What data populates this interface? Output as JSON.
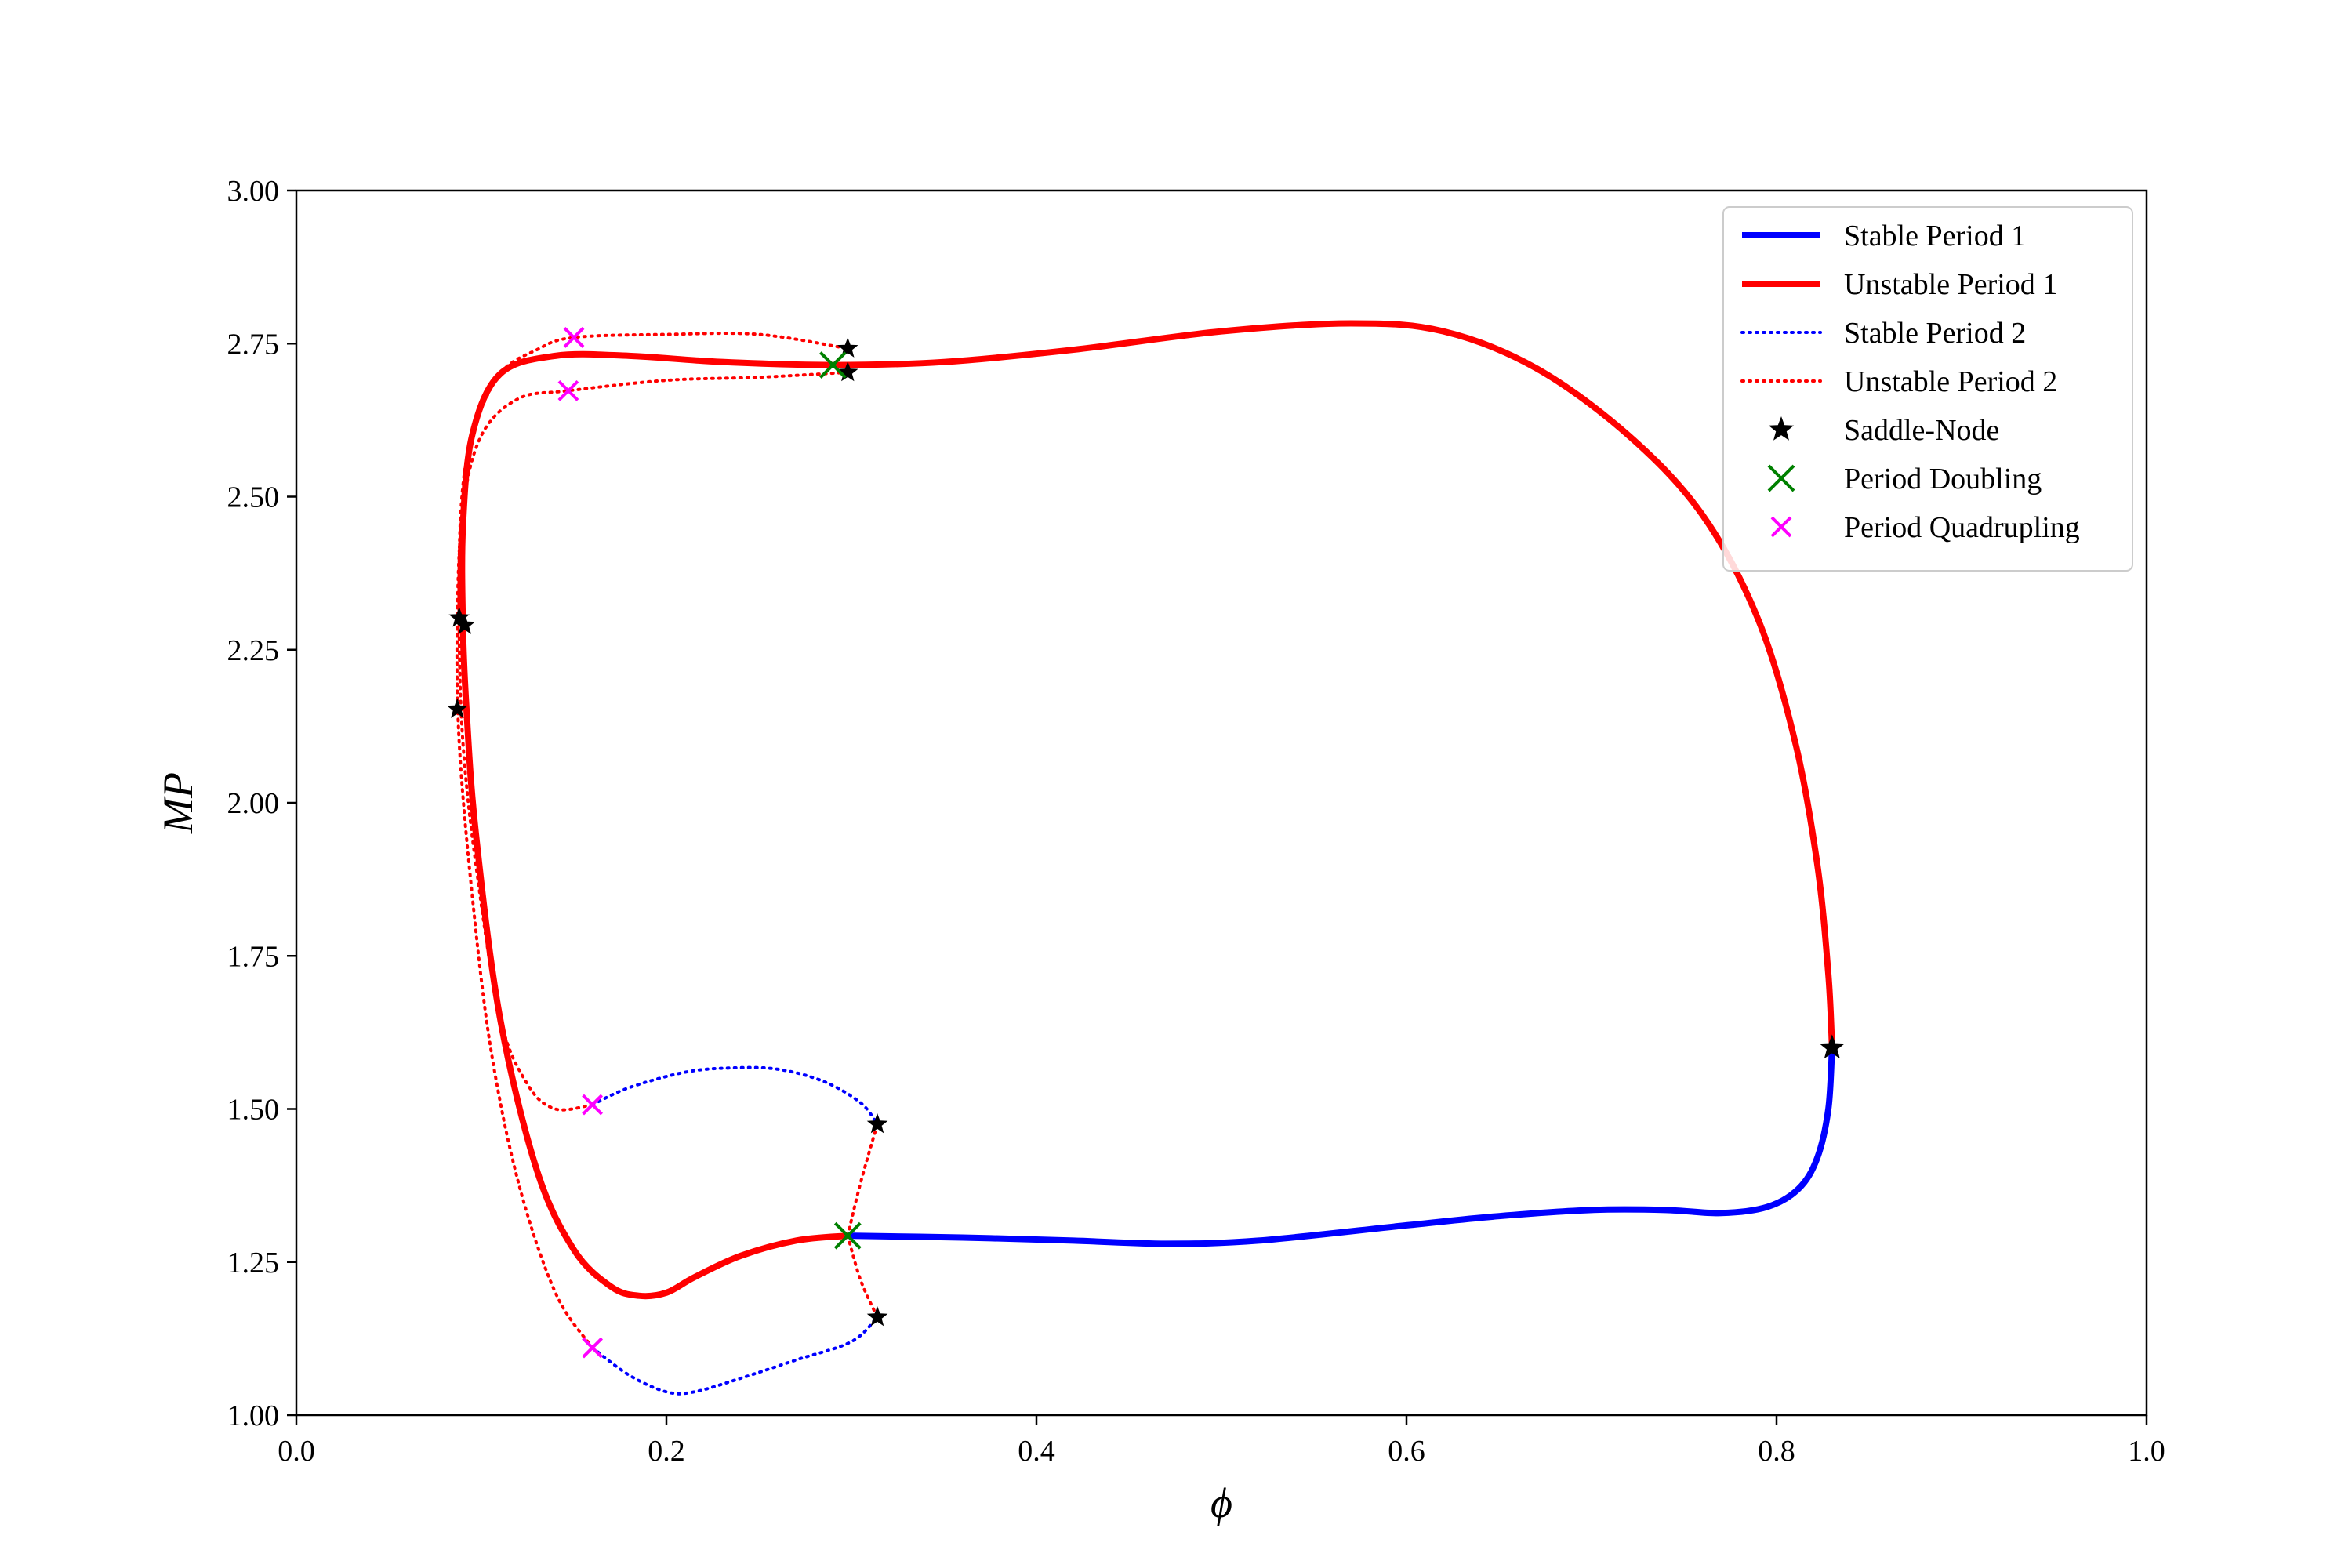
{
  "chart_data": {
    "type": "line",
    "title": "",
    "xlabel": "ϕ",
    "ylabel": "MP",
    "xlim": [
      0.0,
      1.0
    ],
    "ylim": [
      1.0,
      3.0
    ],
    "xticks": [
      "0.0",
      "0.2",
      "0.4",
      "0.6",
      "0.8",
      "1.0"
    ],
    "yticks": [
      "1.00",
      "1.25",
      "1.50",
      "1.75",
      "2.00",
      "2.25",
      "2.50",
      "2.75",
      "3.00"
    ],
    "grid": false,
    "legend_position": "top-right",
    "series": [
      {
        "name": "Stable Period 1",
        "style": "solid",
        "color": "#0000ff",
        "segments": [
          [
            [
              0.298,
              1.293
            ],
            [
              0.36,
              1.29
            ],
            [
              0.42,
              1.285
            ],
            [
              0.47,
              1.28
            ],
            [
              0.52,
              1.285
            ],
            [
              0.6,
              1.31
            ],
            [
              0.65,
              1.325
            ],
            [
              0.7,
              1.335
            ],
            [
              0.74,
              1.335
            ],
            [
              0.77,
              1.33
            ],
            [
              0.795,
              1.34
            ],
            [
              0.812,
              1.37
            ],
            [
              0.822,
              1.42
            ],
            [
              0.828,
              1.5
            ],
            [
              0.83,
              1.6
            ]
          ]
        ]
      },
      {
        "name": "Unstable Period 1",
        "style": "solid",
        "color": "#ff0000",
        "segments": [
          [
            [
              0.298,
              1.293
            ],
            [
              0.27,
              1.285
            ],
            [
              0.24,
              1.26
            ],
            [
              0.215,
              1.225
            ],
            [
              0.2,
              1.2
            ],
            [
              0.185,
              1.195
            ],
            [
              0.17,
              1.21
            ],
            [
              0.15,
              1.27
            ],
            [
              0.13,
              1.4
            ],
            [
              0.11,
              1.65
            ],
            [
              0.097,
              1.95
            ],
            [
              0.092,
              2.15
            ],
            [
              0.09,
              2.29
            ],
            [
              0.09,
              2.45
            ],
            [
              0.095,
              2.6
            ],
            [
              0.11,
              2.7
            ],
            [
              0.14,
              2.73
            ],
            [
              0.18,
              2.73
            ],
            [
              0.23,
              2.72
            ],
            [
              0.29,
              2.715
            ],
            [
              0.35,
              2.72
            ],
            [
              0.42,
              2.74
            ],
            [
              0.5,
              2.77
            ],
            [
              0.57,
              2.783
            ],
            [
              0.62,
              2.77
            ],
            [
              0.67,
              2.71
            ],
            [
              0.72,
              2.6
            ],
            [
              0.76,
              2.47
            ],
            [
              0.79,
              2.3
            ],
            [
              0.81,
              2.1
            ],
            [
              0.822,
              1.9
            ],
            [
              0.828,
              1.72
            ],
            [
              0.83,
              1.6
            ]
          ]
        ]
      },
      {
        "name": "Stable Period 2",
        "style": "dotted",
        "color": "#0000ff",
        "segments": [
          [
            [
              0.16,
              1.507
            ],
            [
              0.18,
              1.535
            ],
            [
              0.21,
              1.56
            ],
            [
              0.235,
              1.567
            ],
            [
              0.26,
              1.565
            ],
            [
              0.285,
              1.545
            ],
            [
              0.305,
              1.51
            ],
            [
              0.314,
              1.475
            ]
          ],
          [
            [
              0.16,
              1.11
            ],
            [
              0.18,
              1.065
            ],
            [
              0.2,
              1.038
            ],
            [
              0.215,
              1.038
            ],
            [
              0.24,
              1.06
            ],
            [
              0.27,
              1.09
            ],
            [
              0.3,
              1.12
            ],
            [
              0.314,
              1.16
            ]
          ]
        ]
      },
      {
        "name": "Unstable Period 2",
        "style": "dotted",
        "color": "#ff0000",
        "segments": [
          [
            [
              0.298,
              1.293
            ],
            [
              0.305,
              1.38
            ],
            [
              0.314,
              1.475
            ]
          ],
          [
            [
              0.298,
              1.293
            ],
            [
              0.305,
              1.22
            ],
            [
              0.314,
              1.16
            ]
          ],
          [
            [
              0.16,
              1.507
            ],
            [
              0.14,
              1.5
            ],
            [
              0.125,
              1.54
            ],
            [
              0.11,
              1.65
            ],
            [
              0.097,
              1.9
            ],
            [
              0.09,
              2.1
            ],
            [
              0.088,
              2.29
            ],
            [
              0.089,
              2.48
            ],
            [
              0.095,
              2.6
            ],
            [
              0.11,
              2.7
            ],
            [
              0.13,
              2.74
            ],
            [
              0.15,
              2.76
            ],
            [
              0.2,
              2.765
            ],
            [
              0.25,
              2.765
            ],
            [
              0.298,
              2.742
            ]
          ],
          [
            [
              0.16,
              1.11
            ],
            [
              0.14,
              1.2
            ],
            [
              0.12,
              1.38
            ],
            [
              0.105,
              1.6
            ],
            [
              0.095,
              1.85
            ],
            [
              0.088,
              2.1
            ],
            [
              0.087,
              2.3
            ],
            [
              0.09,
              2.48
            ],
            [
              0.1,
              2.6
            ],
            [
              0.12,
              2.66
            ],
            [
              0.147,
              2.673
            ],
            [
              0.2,
              2.69
            ],
            [
              0.25,
              2.695
            ],
            [
              0.298,
              2.703
            ]
          ]
        ]
      },
      {
        "name": "Saddle-Node",
        "marker": "star",
        "color": "#000000",
        "points": [
          [
            0.83,
            1.6
          ],
          [
            0.298,
            2.742
          ],
          [
            0.298,
            2.703
          ],
          [
            0.088,
            2.302
          ],
          [
            0.091,
            2.29
          ],
          [
            0.087,
            2.153
          ],
          [
            0.314,
            1.475
          ],
          [
            0.314,
            1.16
          ]
        ]
      },
      {
        "name": "Period Doubling",
        "marker": "x",
        "color": "#008000",
        "points": [
          [
            0.29,
            2.715
          ],
          [
            0.298,
            1.293
          ]
        ]
      },
      {
        "name": "Period Quadrupling",
        "marker": "x",
        "color": "#ff00ff",
        "points": [
          [
            0.15,
            2.76
          ],
          [
            0.147,
            2.673
          ],
          [
            0.16,
            1.507
          ],
          [
            0.16,
            1.11
          ]
        ]
      }
    ]
  }
}
